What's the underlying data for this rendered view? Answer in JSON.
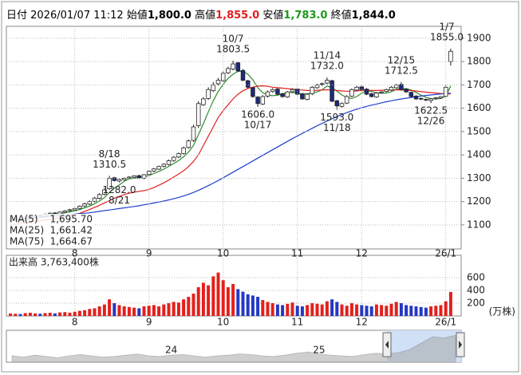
{
  "header": {
    "date_label": "日付",
    "datetime": "2026/01/07 11:12",
    "open_label": "始値",
    "open": "1,800.0",
    "high_label": "高値",
    "high": "1,855.0",
    "low_label": "安値",
    "low": "1,783.0",
    "close_label": "終値",
    "close": "1,844.0"
  },
  "chart_data": [
    {
      "type": "candlestick",
      "categories": [
        null,
        null,
        null,
        null,
        null,
        null,
        null,
        null,
        null,
        null,
        null,
        null,
        null,
        "8",
        null,
        null,
        null,
        null,
        null,
        null,
        null,
        null,
        null,
        null,
        null,
        null,
        null,
        null,
        "9",
        null,
        null,
        null,
        null,
        null,
        null,
        null,
        null,
        null,
        null,
        null,
        null,
        null,
        null,
        "10",
        null,
        null,
        null,
        null,
        null,
        null,
        null,
        null,
        null,
        null,
        null,
        null,
        null,
        null,
        "11",
        null,
        null,
        null,
        null,
        null,
        null,
        null,
        null,
        null,
        null,
        null,
        null,
        "12",
        null,
        null,
        null,
        null,
        null,
        null,
        null,
        null,
        null,
        null,
        null,
        null,
        null,
        null,
        null,
        null,
        "26/1",
        null
      ],
      "open": [
        1115,
        1120,
        1126,
        1117,
        1131,
        1134,
        1141,
        1137,
        1146,
        1151,
        1147,
        1154,
        1161,
        1164,
        1171,
        1181,
        1189,
        1201,
        1214,
        1231,
        1255,
        1302,
        1288,
        1294,
        1301,
        1304,
        1311,
        1300,
        1316,
        1331,
        1339,
        1351,
        1359,
        1376,
        1391,
        1406,
        1432,
        1462,
        1525,
        1615,
        1642,
        1675,
        1705,
        1718,
        1752,
        1768,
        1795,
        1762,
        1718,
        1688,
        1648,
        1618,
        1652,
        1672,
        1682,
        1662,
        1648,
        1671,
        1682,
        1662,
        1638,
        1662,
        1688,
        1702,
        1708,
        1718,
        1632,
        1608,
        1622,
        1652,
        1678,
        1692,
        1682,
        1662,
        1648,
        1666,
        1672,
        1678,
        1688,
        1702,
        1682,
        1668,
        1652,
        1642,
        1638,
        1633,
        1641,
        1644,
        1651,
        1800
      ],
      "high": [
        1124,
        1130,
        1129,
        1134,
        1139,
        1145,
        1144,
        1149,
        1154,
        1155,
        1158,
        1164,
        1169,
        1174,
        1184,
        1195,
        1205,
        1220,
        1236,
        1258,
        1310.5,
        1306,
        1298,
        1304,
        1309,
        1313,
        1315,
        1318,
        1334,
        1344,
        1354,
        1364,
        1380,
        1395,
        1410,
        1436,
        1466,
        1530,
        1630,
        1648,
        1690,
        1712,
        1730,
        1758,
        1778,
        1803.5,
        1798,
        1768,
        1722,
        1692,
        1652,
        1656,
        1676,
        1686,
        1686,
        1666,
        1674,
        1686,
        1686,
        1666,
        1664,
        1695,
        1705,
        1710,
        1732,
        1722,
        1636,
        1625,
        1656,
        1685,
        1696,
        1697,
        1686,
        1666,
        1670,
        1674,
        1684,
        1695,
        1704,
        1712.5,
        1686,
        1672,
        1656,
        1646,
        1642,
        1644,
        1648,
        1652,
        1698,
        1855
      ],
      "low": [
        1110,
        1116,
        1114,
        1112,
        1127,
        1130,
        1134,
        1133,
        1142,
        1144,
        1143,
        1150,
        1157,
        1160,
        1166,
        1176,
        1185,
        1197,
        1209,
        1226,
        1250,
        1286,
        1282,
        1290,
        1297,
        1300,
        1298,
        1296,
        1312,
        1326,
        1335,
        1346,
        1355,
        1371,
        1386,
        1402,
        1426,
        1456,
        1515,
        1610,
        1636,
        1670,
        1698,
        1712,
        1746,
        1762,
        1755,
        1716,
        1684,
        1645,
        1606,
        1614,
        1646,
        1666,
        1655,
        1645,
        1644,
        1665,
        1656,
        1636,
        1634,
        1656,
        1684,
        1696,
        1702,
        1626,
        1593,
        1603,
        1618,
        1648,
        1672,
        1676,
        1656,
        1646,
        1644,
        1662,
        1668,
        1674,
        1684,
        1676,
        1666,
        1646,
        1636,
        1634,
        1630,
        1622.5,
        1636,
        1640,
        1647,
        1783
      ],
      "close": [
        1120,
        1125,
        1118,
        1130,
        1135,
        1140,
        1138,
        1145,
        1150,
        1148,
        1155,
        1160,
        1165,
        1170,
        1180,
        1190,
        1200,
        1215,
        1230,
        1250,
        1300,
        1290,
        1295,
        1300,
        1305,
        1310,
        1302,
        1315,
        1330,
        1340,
        1350,
        1360,
        1375,
        1390,
        1405,
        1430,
        1460,
        1520,
        1620,
        1640,
        1680,
        1700,
        1720,
        1750,
        1770,
        1790,
        1760,
        1720,
        1690,
        1650,
        1620,
        1650,
        1670,
        1680,
        1660,
        1650,
        1670,
        1680,
        1660,
        1640,
        1660,
        1690,
        1700,
        1705,
        1720,
        1630,
        1610,
        1620,
        1650,
        1680,
        1690,
        1680,
        1660,
        1650,
        1665,
        1670,
        1680,
        1690,
        1700,
        1680,
        1670,
        1650,
        1640,
        1640,
        1635,
        1640,
        1645,
        1650,
        1690,
        1844
      ],
      "up_color": "#ffffff",
      "down_color": "#1c2a78",
      "edge_color": "#222222",
      "series": [
        {
          "name": "MA(5)",
          "color": "#2e8b2e",
          "last_label": "1,695.70",
          "values": [
            1118,
            1120,
            1121,
            1124,
            1126,
            1130,
            1132,
            1137,
            1142,
            1144,
            1147,
            1152,
            1156,
            1160,
            1166,
            1173,
            1181,
            1191,
            1203,
            1217,
            1239,
            1257,
            1271,
            1287,
            1298,
            1300,
            1302,
            1306,
            1312,
            1320,
            1329,
            1339,
            1351,
            1363,
            1376,
            1392,
            1412,
            1441,
            1487,
            1534,
            1584,
            1632,
            1672,
            1702,
            1728,
            1746,
            1758,
            1758,
            1746,
            1722,
            1688,
            1666,
            1656,
            1654,
            1656,
            1662,
            1666,
            1668,
            1664,
            1660,
            1662,
            1666,
            1670,
            1679,
            1695,
            1689,
            1673,
            1657,
            1646,
            1642,
            1650,
            1664,
            1676,
            1672,
            1665,
            1665,
            1665,
            1671,
            1681,
            1684,
            1684,
            1678,
            1668,
            1656,
            1647,
            1641,
            1640,
            1642,
            1652,
            1695.7
          ]
        },
        {
          "name": "MA(25)",
          "color": "#e02020",
          "last_label": "1,661.42",
          "values": [
            1100,
            1103,
            1106,
            1109,
            1112,
            1115,
            1118,
            1121,
            1124,
            1127,
            1131,
            1135,
            1139,
            1144,
            1150,
            1158,
            1166,
            1175,
            1184,
            1194,
            1204,
            1214,
            1222,
            1230,
            1236,
            1240,
            1244,
            1247,
            1252,
            1260,
            1270,
            1280,
            1292,
            1305,
            1318,
            1332,
            1350,
            1372,
            1400,
            1440,
            1480,
            1520,
            1560,
            1590,
            1615,
            1640,
            1660,
            1675,
            1685,
            1690,
            1695,
            1696,
            1694,
            1690,
            1688,
            1686,
            1684,
            1682,
            1680,
            1678,
            1676,
            1676,
            1677,
            1678,
            1679,
            1678,
            1676,
            1674,
            1673,
            1673,
            1674,
            1677,
            1677,
            1676,
            1676,
            1677,
            1677,
            1678,
            1679,
            1678,
            1677,
            1676,
            1674,
            1671,
            1669,
            1667,
            1665,
            1663,
            1662,
            1661.42
          ]
        },
        {
          "name": "MA(75)",
          "color": "#1f3fd0",
          "last_label": "1,664.67",
          "values": [
            1120,
            1122,
            1124,
            1126,
            1128,
            1130,
            1132,
            1134,
            1136,
            1138,
            1140,
            1142,
            1144,
            1146,
            1148,
            1150,
            1152,
            1155,
            1158,
            1161,
            1164,
            1167,
            1170,
            1173,
            1176,
            1179,
            1182,
            1186,
            1190,
            1194,
            1198,
            1202,
            1207,
            1212,
            1218,
            1224,
            1231,
            1239,
            1248,
            1258,
            1268,
            1279,
            1290,
            1302,
            1314,
            1326,
            1338,
            1350,
            1362,
            1374,
            1386,
            1398,
            1410,
            1422,
            1434,
            1446,
            1458,
            1470,
            1481,
            1492,
            1503,
            1514,
            1525,
            1535,
            1545,
            1555,
            1564,
            1573,
            1581,
            1589,
            1596,
            1602,
            1608,
            1613,
            1618,
            1623,
            1628,
            1632,
            1636,
            1640,
            1643,
            1646,
            1649,
            1652,
            1655,
            1657,
            1659,
            1661,
            1663,
            1664.67
          ]
        }
      ],
      "annotations": [
        {
          "date": "8/18",
          "value": 1310.5
        },
        {
          "date": "8/21",
          "value": 1282,
          "label": "1282.0"
        },
        {
          "date": "10/7",
          "value": 1803.5
        },
        {
          "date": "10/17",
          "value": 1606,
          "label": "1606.0"
        },
        {
          "date": "11/14",
          "value": 1732,
          "label": "1732.0"
        },
        {
          "date": "11/18",
          "value": 1593,
          "label": "1593.0"
        },
        {
          "date": "12/15",
          "value": 1712.5
        },
        {
          "date": "12/26",
          "value": 1622.5
        },
        {
          "date": "1/7",
          "value": 1855,
          "label": "1855.0"
        }
      ],
      "ylim": [
        997,
        1951
      ],
      "yticks": [
        1100,
        1200,
        1300,
        1400,
        1500,
        1600,
        1700,
        1800,
        1900
      ],
      "grid": true
    },
    {
      "type": "bar",
      "title": "出来高 3,763,400株",
      "unit": "(万株)",
      "values": [
        40,
        35,
        30,
        45,
        50,
        40,
        35,
        45,
        50,
        40,
        55,
        60,
        50,
        65,
        80,
        90,
        110,
        120,
        150,
        180,
        260,
        200,
        170,
        150,
        140,
        130,
        120,
        150,
        160,
        170,
        150,
        180,
        200,
        220,
        210,
        260,
        300,
        350,
        450,
        520,
        480,
        620,
        680,
        560,
        450,
        500,
        420,
        380,
        340,
        320,
        300,
        250,
        220,
        200,
        180,
        170,
        190,
        210,
        160,
        150,
        170,
        200,
        190,
        180,
        230,
        260,
        220,
        180,
        160,
        200,
        180,
        170,
        160,
        150,
        180,
        170,
        160,
        190,
        220,
        200,
        170,
        160,
        150,
        140,
        130,
        150,
        160,
        170,
        230,
        376.34
      ],
      "up_color": "#e3201b",
      "down_color": "#2338c4",
      "ylim": [
        0,
        950
      ],
      "yticks": [
        200,
        400,
        600
      ],
      "grid": true
    },
    {
      "type": "area",
      "categories": [
        null,
        null,
        null,
        null,
        null,
        null,
        null,
        null,
        null,
        null,
        null,
        null,
        null,
        null,
        "24",
        null,
        null,
        null,
        null,
        null,
        null,
        null,
        null,
        null,
        null,
        null,
        null,
        "25",
        null,
        null,
        null,
        null,
        null,
        null,
        null,
        null,
        null,
        null,
        null,
        null
      ],
      "values": [
        1000,
        980,
        1010,
        990,
        970,
        1000,
        1020,
        1000,
        980,
        990,
        1010,
        1030,
        1000,
        990,
        1010,
        1020,
        1000,
        980,
        1000,
        1010,
        1030,
        1020,
        1000,
        990,
        1010,
        1040,
        1060,
        1030,
        1010,
        1000,
        990,
        1020,
        1040,
        1030,
        1050,
        1100,
        1200,
        1300,
        1280,
        1320
      ],
      "color": "#a8a8a8",
      "ylim": [
        900,
        1400
      ]
    }
  ]
}
